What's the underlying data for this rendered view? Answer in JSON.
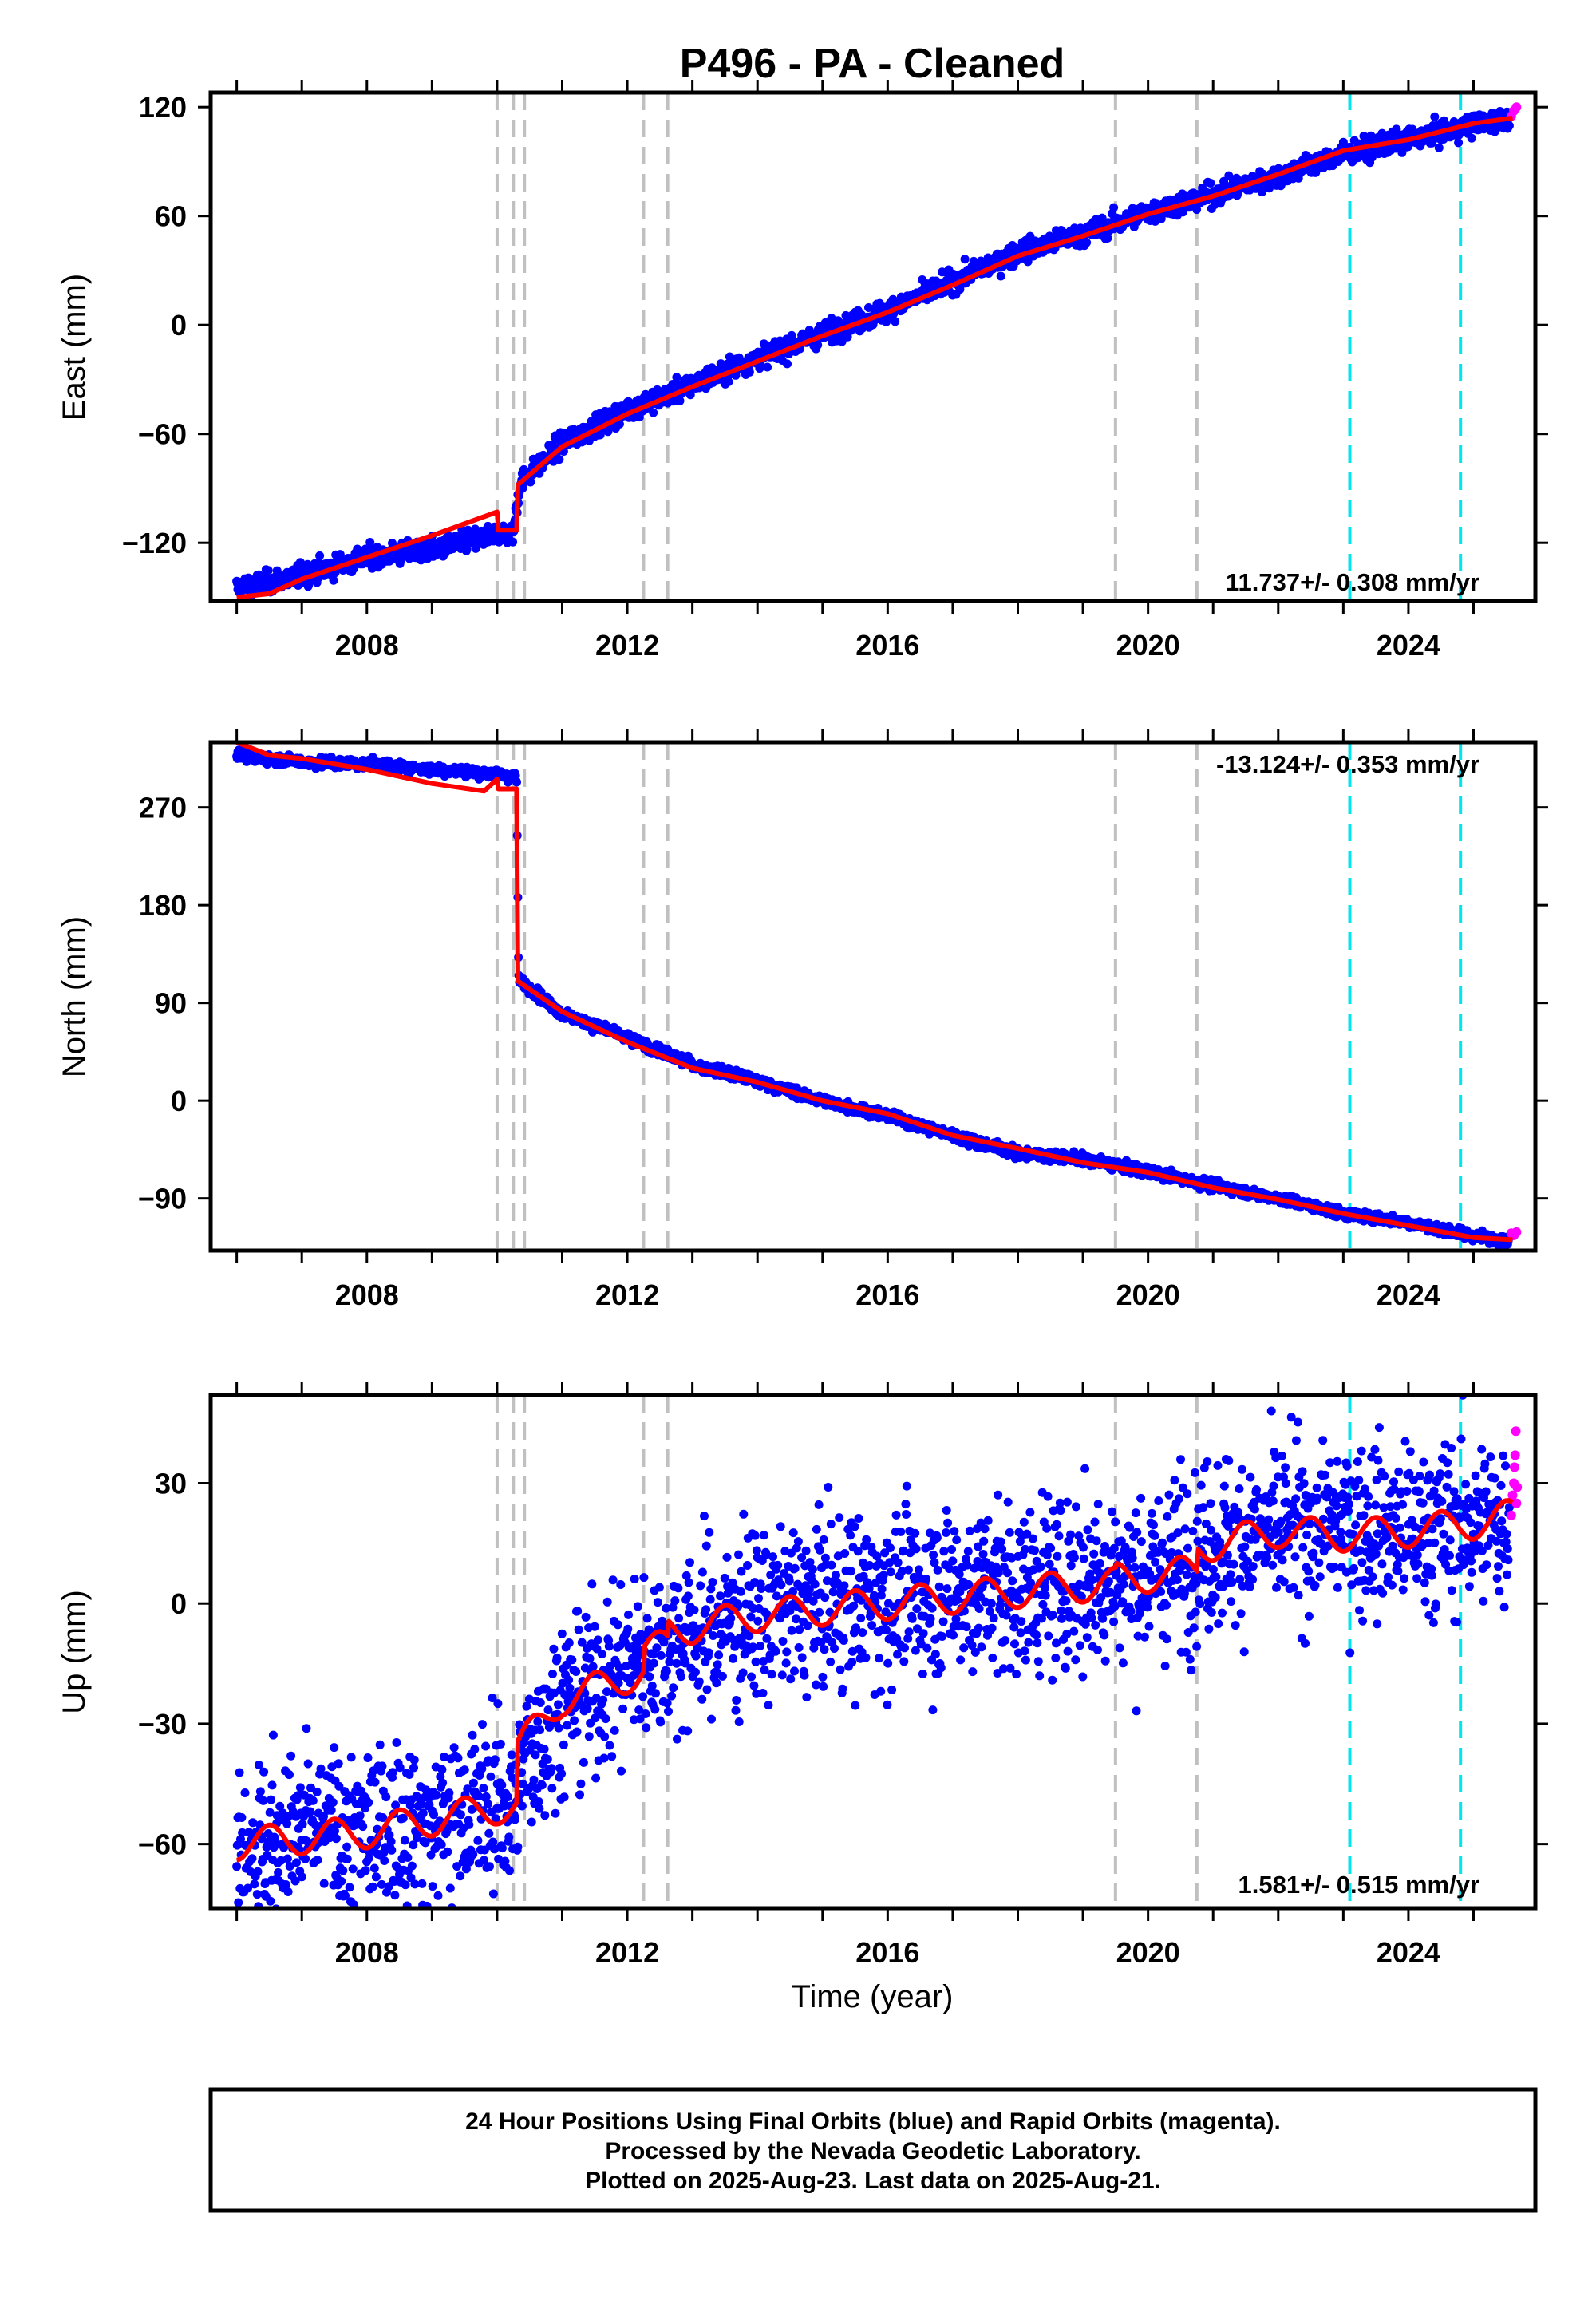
{
  "chart_data": [
    {
      "type": "scatter",
      "title": "P496  - PA - Cleaned",
      "ylabel": "East (mm)",
      "xlim": [
        2005.6,
        2025.95
      ],
      "ylim": [
        -152,
        128
      ],
      "yticks": [
        -120,
        -60,
        0,
        60,
        120
      ],
      "ytick_labels": [
        "−120",
        "−60",
        "0",
        "60",
        "120"
      ],
      "xticks": [
        2008,
        2012,
        2016,
        2020,
        2024
      ],
      "xtick_labels": [
        "2008",
        "2012",
        "2016",
        "2020",
        "2024"
      ],
      "rate_label": "11.737+/- 0.308 mm/yr",
      "event_lines_gray": [
        2010.0,
        2010.25,
        2010.42,
        2012.25,
        2012.62,
        2019.5,
        2020.75
      ],
      "event_lines_cyan": [
        2023.1,
        2024.8
      ],
      "series": [
        {
          "name": "Final Orbits",
          "color": "#0000ff",
          "x": [
            2006.0,
            2007.0,
            2008.0,
            2009.0,
            2010.0,
            2010.25,
            2010.35,
            2011.0,
            2012.0,
            2013.0,
            2014.0,
            2015.0,
            2016.0,
            2017.0,
            2018.0,
            2019.0,
            2020.0,
            2021.0,
            2022.0,
            2023.0,
            2024.0,
            2025.0,
            2025.55
          ],
          "y": [
            -145,
            -138,
            -128,
            -124,
            -115,
            -114,
            -87,
            -65,
            -47,
            -33,
            -18,
            -5,
            8,
            24,
            40,
            50,
            62,
            72,
            82,
            94,
            102,
            110,
            114
          ],
          "scatter": 5
        },
        {
          "name": "Rapid Orbits",
          "color": "#ff00ff",
          "x": [
            2025.58,
            2025.62,
            2025.66
          ],
          "y": [
            115,
            118,
            120
          ]
        },
        {
          "name": "Model",
          "color": "#ff0000",
          "x": [
            2006.0,
            2006.5,
            2007.0,
            2008.0,
            2009.0,
            2010.0,
            2010.02,
            2010.3,
            2010.32,
            2011.0,
            2012.0,
            2013.0,
            2014.0,
            2015.0,
            2016.0,
            2017.0,
            2018.0,
            2019.0,
            2020.0,
            2021.0,
            2022.0,
            2023.0,
            2024.0,
            2025.0,
            2025.6
          ],
          "y": [
            -150,
            -148,
            -140,
            -128,
            -116,
            -103,
            -113,
            -113,
            -88,
            -67,
            -49,
            -34,
            -20,
            -6,
            7,
            22,
            38,
            49,
            61,
            71,
            83,
            96,
            102,
            111,
            114
          ]
        }
      ]
    },
    {
      "type": "scatter",
      "title": "",
      "ylabel": "North (mm)",
      "xlim": [
        2005.6,
        2025.95
      ],
      "ylim": [
        -138,
        330
      ],
      "yticks": [
        -90,
        0,
        90,
        180,
        270
      ],
      "ytick_labels": [
        "−90",
        "0",
        "90",
        "180",
        "270"
      ],
      "xticks": [
        2008,
        2012,
        2016,
        2020,
        2024
      ],
      "xtick_labels": [
        "2008",
        "2012",
        "2016",
        "2020",
        "2024"
      ],
      "rate_label": "-13.124+/- 0.353 mm/yr",
      "event_lines_gray": [
        2010.0,
        2010.25,
        2010.42,
        2012.25,
        2012.62,
        2019.5,
        2020.75
      ],
      "event_lines_cyan": [
        2023.1,
        2024.8
      ],
      "series": [
        {
          "name": "Final Orbits",
          "color": "#0000ff",
          "x": [
            2006.0,
            2007.0,
            2008.0,
            2009.0,
            2010.0,
            2010.3,
            2010.33,
            2011.0,
            2012.0,
            2013.0,
            2014.0,
            2015.0,
            2016.0,
            2017.0,
            2018.0,
            2019.0,
            2020.0,
            2021.0,
            2022.0,
            2023.0,
            2024.0,
            2025.0,
            2025.55
          ],
          "y": [
            318,
            312,
            310,
            305,
            301,
            298,
            112,
            80,
            58,
            33,
            18,
            0,
            -14,
            -32,
            -48,
            -54,
            -65,
            -78,
            -90,
            -104,
            -112,
            -125,
            -128
          ],
          "scatter": 4
        },
        {
          "name": "Rapid Orbits",
          "color": "#ff00ff",
          "x": [
            2025.58,
            2025.62,
            2025.66
          ],
          "y": [
            -122,
            -124,
            -121
          ]
        },
        {
          "name": "Model",
          "color": "#ff0000",
          "x": [
            2006.0,
            2006.5,
            2007.0,
            2008.0,
            2009.0,
            2009.8,
            2010.0,
            2010.02,
            2010.3,
            2010.32,
            2011.0,
            2012.0,
            2013.0,
            2014.0,
            2015.0,
            2016.0,
            2017.0,
            2018.0,
            2019.0,
            2020.0,
            2021.0,
            2022.0,
            2023.0,
            2024.0,
            2025.0,
            2025.6
          ],
          "y": [
            330,
            318,
            315,
            305,
            292,
            285,
            296,
            287,
            287,
            110,
            82,
            54,
            30,
            17,
            0,
            -12,
            -32,
            -44,
            -57,
            -66,
            -80,
            -91,
            -104,
            -115,
            -126,
            -128
          ]
        }
      ]
    },
    {
      "type": "scatter",
      "title": "",
      "ylabel": "Up (mm)",
      "xlabel": "Time (year)",
      "xlim": [
        2005.6,
        2025.95
      ],
      "ylim": [
        -76,
        52
      ],
      "yticks": [
        -60,
        -30,
        0,
        30
      ],
      "ytick_labels": [
        "−60",
        "−30",
        "0",
        "30"
      ],
      "xticks": [
        2008,
        2012,
        2016,
        2020,
        2024
      ],
      "xtick_labels": [
        "2008",
        "2012",
        "2016",
        "2020",
        "2024"
      ],
      "rate_label": "1.581+/- 0.515 mm/yr",
      "event_lines_gray": [
        2010.0,
        2010.25,
        2010.42,
        2012.25,
        2012.62,
        2019.5,
        2020.75
      ],
      "event_lines_cyan": [
        2023.1,
        2024.8
      ],
      "series": [
        {
          "name": "Final Orbits",
          "color": "#0000ff",
          "x": [
            2006.0,
            2007.0,
            2008.0,
            2009.0,
            2010.0,
            2010.3,
            2010.4,
            2011.0,
            2012.0,
            2013.0,
            2014.0,
            2015.0,
            2016.0,
            2017.0,
            2018.0,
            2019.0,
            2020.0,
            2021.0,
            2022.0,
            2023.0,
            2024.0,
            2025.0,
            2025.55
          ],
          "y": [
            -62,
            -58,
            -58,
            -55,
            -50,
            -52,
            -40,
            -25,
            -15,
            -8,
            -2,
            0,
            2,
            3,
            4,
            6,
            7,
            15,
            18,
            20,
            18,
            20,
            21
          ],
          "scatter": 18
        },
        {
          "name": "Rapid Orbits",
          "color": "#ff00ff",
          "x": [
            2025.58,
            2025.6,
            2025.62,
            2025.63,
            2025.64,
            2025.65,
            2025.66,
            2025.67
          ],
          "y": [
            22,
            27,
            30,
            34,
            37,
            43,
            25,
            29
          ]
        },
        {
          "name": "Model",
          "color": "#ff0000",
          "seasonal_amplitude": 4,
          "x": [
            2006.0,
            2008.0,
            2010.0,
            2010.02,
            2010.3,
            2010.32,
            2011.0,
            2012.25,
            2012.27,
            2012.62,
            2012.64,
            2014.0,
            2016.0,
            2018.0,
            2019.5,
            2019.52,
            2020.75,
            2020.77,
            2022.0,
            2023.0,
            2024.0,
            2025.0,
            2025.6
          ],
          "y": [
            -60,
            -57,
            -51,
            -51,
            -51,
            -36,
            -24,
            -17,
            -11,
            -11,
            -7,
            -3,
            0,
            3,
            5,
            6,
            8,
            14,
            18,
            17,
            18,
            20,
            22
          ]
        }
      ]
    }
  ],
  "footer": {
    "line1": "24 Hour Positions Using Final Orbits (blue) and Rapid Orbits (magenta).",
    "line2": "Processed by the Nevada Geodetic Laboratory.",
    "line3": "Plotted on 2025-Aug-23. Last data on 2025-Aug-21."
  },
  "colors": {
    "final": "#0000ff",
    "rapid": "#ff00ff",
    "model": "#ff0000",
    "event_gray": "#c0c0c0",
    "event_cyan": "#00e5ee"
  }
}
